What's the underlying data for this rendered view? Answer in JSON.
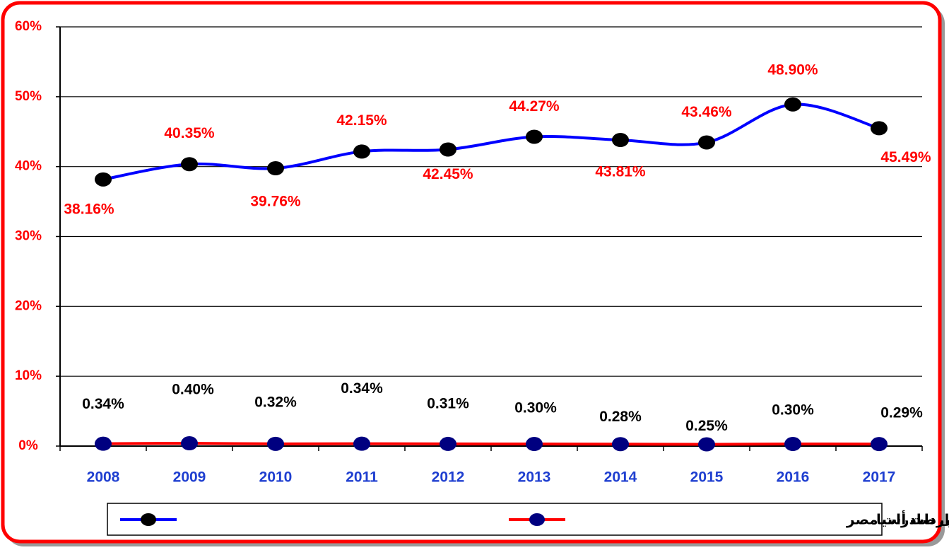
{
  "chart_data": {
    "type": "line",
    "categories": [
      "2008",
      "2009",
      "2010",
      "2011",
      "2012",
      "2013",
      "2014",
      "2015",
      "2016",
      "2017"
    ],
    "series": [
      {
        "name": "الأهمية النسبية فى إجمالى صادرات مصر",
        "color": "#0000ff",
        "marker_color": "#000000",
        "label_color": "#ff0000",
        "values": [
          38.16,
          40.35,
          39.76,
          42.15,
          42.45,
          44.27,
          43.81,
          43.46,
          48.9,
          45.49
        ],
        "value_labels": [
          "38.16%",
          "40.35%",
          "39.76%",
          "42.15%",
          "42.45%",
          "44.27%",
          "43.81%",
          "43.46%",
          "48.90%",
          "45.49%"
        ]
      },
      {
        "name": "الأهمية النسبية فى إجمالى واردات أسيا",
        "color": "#ff0000",
        "marker_color": "#000080",
        "label_color": "#000000",
        "values": [
          0.34,
          0.4,
          0.32,
          0.34,
          0.31,
          0.3,
          0.28,
          0.25,
          0.3,
          0.29
        ],
        "value_labels": [
          "0.34%",
          "0.40%",
          "0.32%",
          "0.34%",
          "0.31%",
          "0.30%",
          "0.28%",
          "0.25%",
          "0.30%",
          "0.29%"
        ]
      }
    ],
    "ylim": [
      0,
      60
    ],
    "yticks": [
      {
        "value": 0,
        "label": "0%"
      },
      {
        "value": 10,
        "label": "10%"
      },
      {
        "value": 20,
        "label": "20%"
      },
      {
        "value": 30,
        "label": "30%"
      },
      {
        "value": 40,
        "label": "40%"
      },
      {
        "value": 50,
        "label": "50%"
      },
      {
        "value": 60,
        "label": "60%"
      }
    ],
    "grid": true
  }
}
